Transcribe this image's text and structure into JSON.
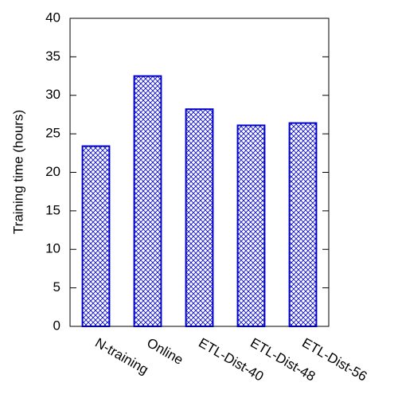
{
  "chart_data": {
    "type": "bar",
    "y_label": "Training time (hours)",
    "categories": [
      "N-training",
      "Online",
      "ETL-Dist-40",
      "ETL-Dist-48",
      "ETL-Dist-56"
    ],
    "values": [
      23.4,
      32.5,
      28.2,
      26.1,
      26.4
    ],
    "color": "#0000cc",
    "ylim": [
      0,
      40
    ],
    "yticks": [
      0,
      5,
      10,
      15,
      20,
      25,
      30,
      35,
      40
    ],
    "grid": false
  }
}
